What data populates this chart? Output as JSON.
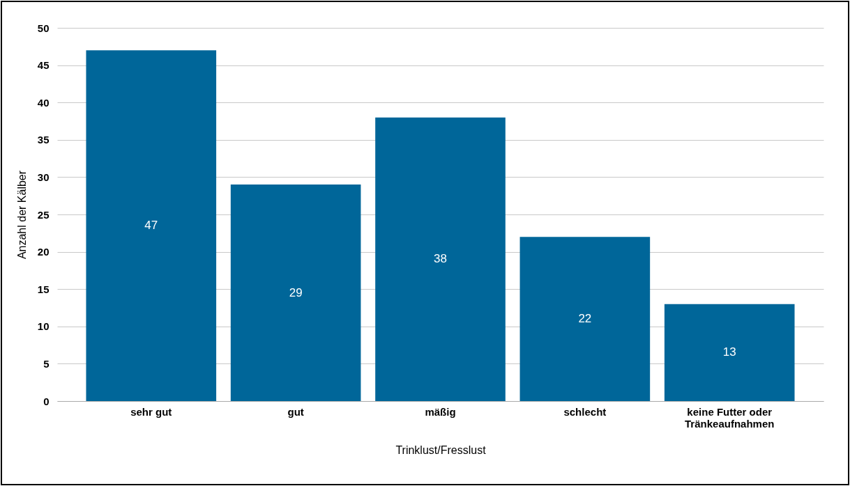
{
  "chart_data": {
    "type": "bar",
    "xlabel": "Trinklust/Fresslust",
    "ylabel": "Anzahl der Kälber",
    "categories": [
      "sehr gut",
      "gut",
      "mäßig",
      "schlecht",
      "keine Futter oder Tränkeaufnahmen"
    ],
    "values": [
      47,
      29,
      38,
      22,
      13
    ],
    "color": "#006699",
    "data_labels": true,
    "ylim": [
      0,
      50
    ],
    "yticks": [
      0,
      5,
      10,
      15,
      20,
      25,
      30,
      35,
      40,
      45,
      50
    ],
    "grid": "y"
  }
}
